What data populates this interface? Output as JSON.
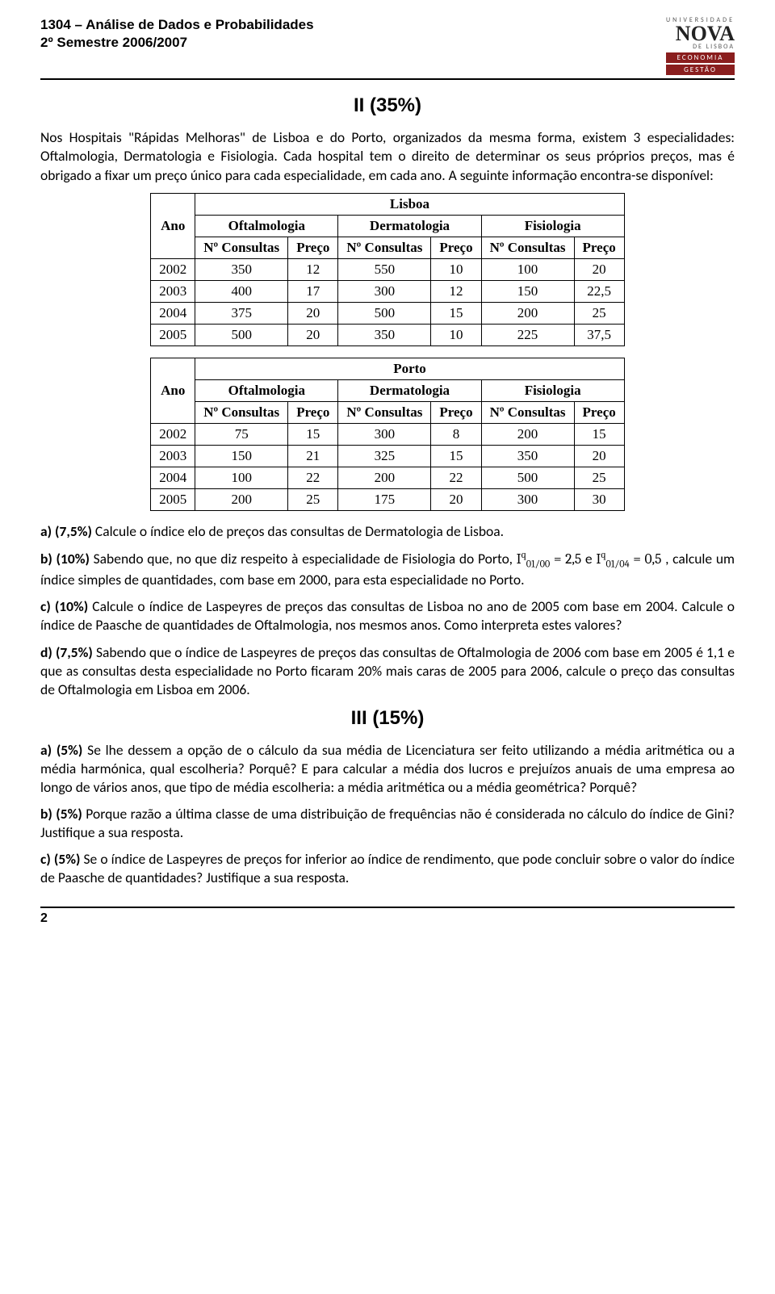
{
  "header": {
    "line1": "1304 – Análise de Dados e Probabilidades",
    "line2": "2º Semestre 2006/2007",
    "logo": {
      "university": "UNIVERSIDADE",
      "nova": "NOVA",
      "lisboa": "DE LISBOA",
      "band1": "ECONOMIA",
      "band2": "GESTÃO"
    }
  },
  "section2": {
    "title": "II (35%)",
    "intro": "Nos Hospitais \"Rápidas Melhoras\" de Lisboa e do Porto, organizados da mesma forma, existem 3 especialidades: Oftalmologia, Dermatologia e Fisiologia. Cada hospital tem o direito de determinar os seus próprios preços, mas é obrigado a fixar um preço único para cada especialidade, em cada ano. A seguinte informação encontra-se disponível:",
    "table_lisboa": {
      "city": "Lisboa",
      "ano_label": "Ano",
      "specialties": [
        "Oftalmologia",
        "Dermatologia",
        "Fisiologia"
      ],
      "subcols": [
        "Nº Consultas",
        "Preço"
      ],
      "rows": [
        {
          "ano": "2002",
          "v": [
            "350",
            "12",
            "550",
            "10",
            "100",
            "20"
          ]
        },
        {
          "ano": "2003",
          "v": [
            "400",
            "17",
            "300",
            "12",
            "150",
            "22,5"
          ]
        },
        {
          "ano": "2004",
          "v": [
            "375",
            "20",
            "500",
            "15",
            "200",
            "25"
          ]
        },
        {
          "ano": "2005",
          "v": [
            "500",
            "20",
            "350",
            "10",
            "225",
            "37,5"
          ]
        }
      ]
    },
    "table_porto": {
      "city": "Porto",
      "ano_label": "Ano",
      "specialties": [
        "Oftalmologia",
        "Dermatologia",
        "Fisiologia"
      ],
      "subcols": [
        "Nº Consultas",
        "Preço"
      ],
      "rows": [
        {
          "ano": "2002",
          "v": [
            "75",
            "15",
            "300",
            "8",
            "200",
            "15"
          ]
        },
        {
          "ano": "2003",
          "v": [
            "150",
            "21",
            "325",
            "15",
            "350",
            "20"
          ]
        },
        {
          "ano": "2004",
          "v": [
            "100",
            "22",
            "200",
            "22",
            "500",
            "25"
          ]
        },
        {
          "ano": "2005",
          "v": [
            "200",
            "25",
            "175",
            "20",
            "300",
            "30"
          ]
        }
      ]
    },
    "qa_label": "a) (7,5%)",
    "qa_text": " Calcule o índice elo de preços das consultas de Dermatologia de Lisboa.",
    "qb_label": "b) (10%)",
    "qb_pre": " Sabendo que, no que diz respeito à especialidade de Fisiologia do Porto, ",
    "qb_f1": "I",
    "qb_f1_sup": "q",
    "qb_f1_sub": "01/00",
    "qb_eq1": " = 2,5",
    "qb_and": "  e  ",
    "qb_f2": "I",
    "qb_f2_sup": "q",
    "qb_f2_sub": "01/04",
    "qb_eq2": " = 0,5",
    "qb_post": " , calcule um índice simples de quantidades, com base em 2000, para esta especialidade no Porto.",
    "qc_label": "c) (10%)",
    "qc_text": " Calcule o índice de Laspeyres de preços das consultas de Lisboa no ano de 2005 com base em 2004. Calcule o índice de Paasche de quantidades de Oftalmologia, nos mesmos anos. Como interpreta estes valores?",
    "qd_label": "d) (7,5%)",
    "qd_text": " Sabendo que o índice de Laspeyres de preços das consultas de Oftalmologia de 2006 com base em 2005 é 1,1 e que as consultas desta especialidade no Porto ficaram 20% mais caras de 2005 para 2006, calcule o preço das consultas de Oftalmologia em Lisboa em 2006."
  },
  "section3": {
    "title": "III (15%)",
    "qa_label": "a) (5%)",
    "qa_text": " Se lhe dessem a opção de o cálculo da sua média de Licenciatura ser feito utilizando a média aritmética ou a média harmónica, qual escolheria? Porquê? E para calcular a média dos lucros e prejuízos anuais de uma empresa ao longo de vários anos, que tipo de média escolheria: a média aritmética ou a média geométrica? Porquê?",
    "qb_label": "b) (5%)",
    "qb_text": " Porque razão a última classe de uma distribuição de frequências não é considerada no cálculo do índice de Gini? Justifique a sua resposta.",
    "qc_label": "c) (5%)",
    "qc_text": " Se o índice de Laspeyres de preços for inferior ao índice de rendimento, que pode concluir sobre o valor do índice de Paasche de quantidades? Justifique a sua resposta."
  },
  "footer": {
    "page": "2"
  }
}
